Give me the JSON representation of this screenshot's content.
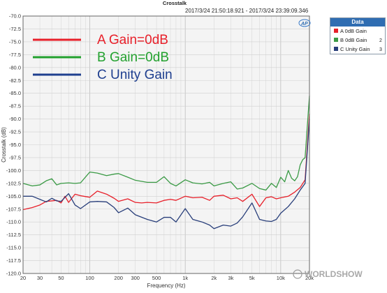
{
  "header": {
    "title": "Crosstalk",
    "timestamp": "2017/3/24 21:50:18.921 - 2017/3/24 23:39:09.346",
    "logo_text": "AP"
  },
  "watermark": "WORLDSHOW",
  "annotations": [
    {
      "text": "A Gain=0dB",
      "color": "#e8202a"
    },
    {
      "text": "B Gain=0dB",
      "color": "#22a12e"
    },
    {
      "text": "C Unity Gain",
      "color": "#1f3f8f"
    }
  ],
  "legend_panel": {
    "header": "Data",
    "items": [
      {
        "label": "A 0dB Gain",
        "num": "",
        "color": "#e8202a"
      },
      {
        "label": "B 0dB Gain",
        "num": "2",
        "color": "#3a9a45"
      },
      {
        "label": "C Unity Gain",
        "num": "3",
        "color": "#283e7a"
      }
    ]
  },
  "chart_data": {
    "type": "line",
    "title": "Crosstalk",
    "xlabel": "Frequency (Hz)",
    "ylabel": "Crosstalk (dB)",
    "xscale": "log",
    "xlim": [
      20,
      20000
    ],
    "ylim": [
      -120,
      -70
    ],
    "grid": true,
    "legend": "top-right",
    "x_ticks": [
      {
        "v": 20,
        "l": "20"
      },
      {
        "v": 30,
        "l": "30"
      },
      {
        "v": 50,
        "l": "50"
      },
      {
        "v": 100,
        "l": "100"
      },
      {
        "v": 200,
        "l": "200"
      },
      {
        "v": 300,
        "l": "300"
      },
      {
        "v": 500,
        "l": "500"
      },
      {
        "v": 1000,
        "l": "1k"
      },
      {
        "v": 2000,
        "l": "2k"
      },
      {
        "v": 3000,
        "l": "3k"
      },
      {
        "v": 5000,
        "l": "5k"
      },
      {
        "v": 10000,
        "l": "10k"
      },
      {
        "v": 20000,
        "l": "20k"
      }
    ],
    "y_ticks": [
      {
        "v": -70,
        "l": "-70.0"
      },
      {
        "v": -72.5,
        "l": "-72.5"
      },
      {
        "v": -75,
        "l": "-75.0"
      },
      {
        "v": -77.5,
        "l": "-77.5"
      },
      {
        "v": -80,
        "l": "-80.0"
      },
      {
        "v": -82.5,
        "l": "-82.5"
      },
      {
        "v": -85,
        "l": "-85.0"
      },
      {
        "v": -87.5,
        "l": "-87.5"
      },
      {
        "v": -90,
        "l": "-90.0"
      },
      {
        "v": -92.5,
        "l": "-92.5"
      },
      {
        "v": -95,
        "l": "-95.0"
      },
      {
        "v": -97.5,
        "l": "-97.5"
      },
      {
        "v": -100,
        "l": "-100.0"
      },
      {
        "v": -102.5,
        "l": "-102.5"
      },
      {
        "v": -105,
        "l": "-105.0"
      },
      {
        "v": -107.5,
        "l": "-107.5"
      },
      {
        "v": -110,
        "l": "-110.0"
      },
      {
        "v": -112.5,
        "l": "-112.5"
      },
      {
        "v": -115,
        "l": "-115.0"
      },
      {
        "v": -117.5,
        "l": "-117.5"
      },
      {
        "v": -120,
        "l": "-120.0"
      }
    ],
    "series": [
      {
        "name": "A 0dB Gain",
        "color": "#e8202a",
        "x": [
          20,
          25,
          30,
          35,
          40,
          45,
          50,
          55,
          60,
          70,
          80,
          100,
          120,
          150,
          180,
          200,
          250,
          300,
          350,
          400,
          500,
          600,
          700,
          800,
          1000,
          1200,
          1500,
          1800,
          2000,
          2500,
          3000,
          3500,
          4000,
          5000,
          6000,
          7000,
          8000,
          9000,
          10000,
          12000,
          14000,
          16000,
          18000,
          20000
        ],
        "y": [
          -107.6,
          -107.2,
          -106.7,
          -106.0,
          -105.9,
          -105.8,
          -106.3,
          -105.0,
          -106.2,
          -104.6,
          -104.9,
          -105.2,
          -104.0,
          -104.6,
          -105.4,
          -106.0,
          -105.5,
          -106.2,
          -106.3,
          -106.2,
          -106.3,
          -105.8,
          -105.6,
          -105.8,
          -105.0,
          -105.3,
          -105.2,
          -105.8,
          -105.0,
          -104.8,
          -105.5,
          -105.3,
          -106.0,
          -104.6,
          -107.0,
          -105.3,
          -105.1,
          -105.5,
          -105.3,
          -105.0,
          -104.2,
          -103.3,
          -101.8,
          -89.0
        ]
      },
      {
        "name": "B 0dB Gain",
        "color": "#3a9a45",
        "x": [
          20,
          25,
          30,
          35,
          40,
          45,
          50,
          60,
          70,
          80,
          100,
          120,
          150,
          180,
          200,
          250,
          300,
          400,
          500,
          600,
          700,
          800,
          1000,
          1200,
          1500,
          1800,
          2000,
          2500,
          3000,
          3500,
          4000,
          5000,
          6000,
          7000,
          8000,
          9000,
          10000,
          11000,
          12000,
          13000,
          14000,
          15000,
          16000,
          17000,
          18000,
          20000
        ],
        "y": [
          -102.5,
          -103.0,
          -102.8,
          -102.0,
          -101.6,
          -102.8,
          -102.5,
          -102.4,
          -102.5,
          -102.4,
          -100.3,
          -100.5,
          -101.0,
          -100.7,
          -100.6,
          -101.3,
          -101.9,
          -102.3,
          -102.3,
          -101.2,
          -102.5,
          -103.0,
          -101.8,
          -102.4,
          -102.6,
          -102.3,
          -103.0,
          -102.5,
          -102.2,
          -103.6,
          -103.4,
          -102.5,
          -103.5,
          -103.8,
          -102.5,
          -103.3,
          -101.3,
          -102.2,
          -100.0,
          -101.5,
          -102.0,
          -101.2,
          -98.9,
          -97.9,
          -97.5,
          -85.5
        ]
      },
      {
        "name": "C Unity Gain",
        "color": "#283e7a",
        "x": [
          20,
          25,
          30,
          35,
          40,
          45,
          50,
          60,
          70,
          80,
          100,
          120,
          150,
          180,
          200,
          250,
          300,
          400,
          500,
          600,
          700,
          800,
          1000,
          1200,
          1500,
          1800,
          2000,
          2500,
          3000,
          3500,
          4000,
          5000,
          6000,
          7000,
          8000,
          9000,
          10000,
          12000,
          14000,
          16000,
          18000,
          20000
        ],
        "y": [
          -105.0,
          -105.0,
          -105.6,
          -106.1,
          -105.4,
          -105.9,
          -106.0,
          -104.5,
          -106.7,
          -107.4,
          -106.1,
          -106.0,
          -106.1,
          -107.2,
          -108.2,
          -107.3,
          -108.6,
          -109.5,
          -110.0,
          -109.1,
          -109.1,
          -110.0,
          -107.4,
          -109.5,
          -110.0,
          -110.6,
          -111.3,
          -110.6,
          -110.8,
          -110.2,
          -109.0,
          -106.3,
          -109.5,
          -109.8,
          -109.9,
          -109.5,
          -108.3,
          -107.0,
          -105.5,
          -103.8,
          -102.5,
          -90.0
        ]
      }
    ]
  }
}
